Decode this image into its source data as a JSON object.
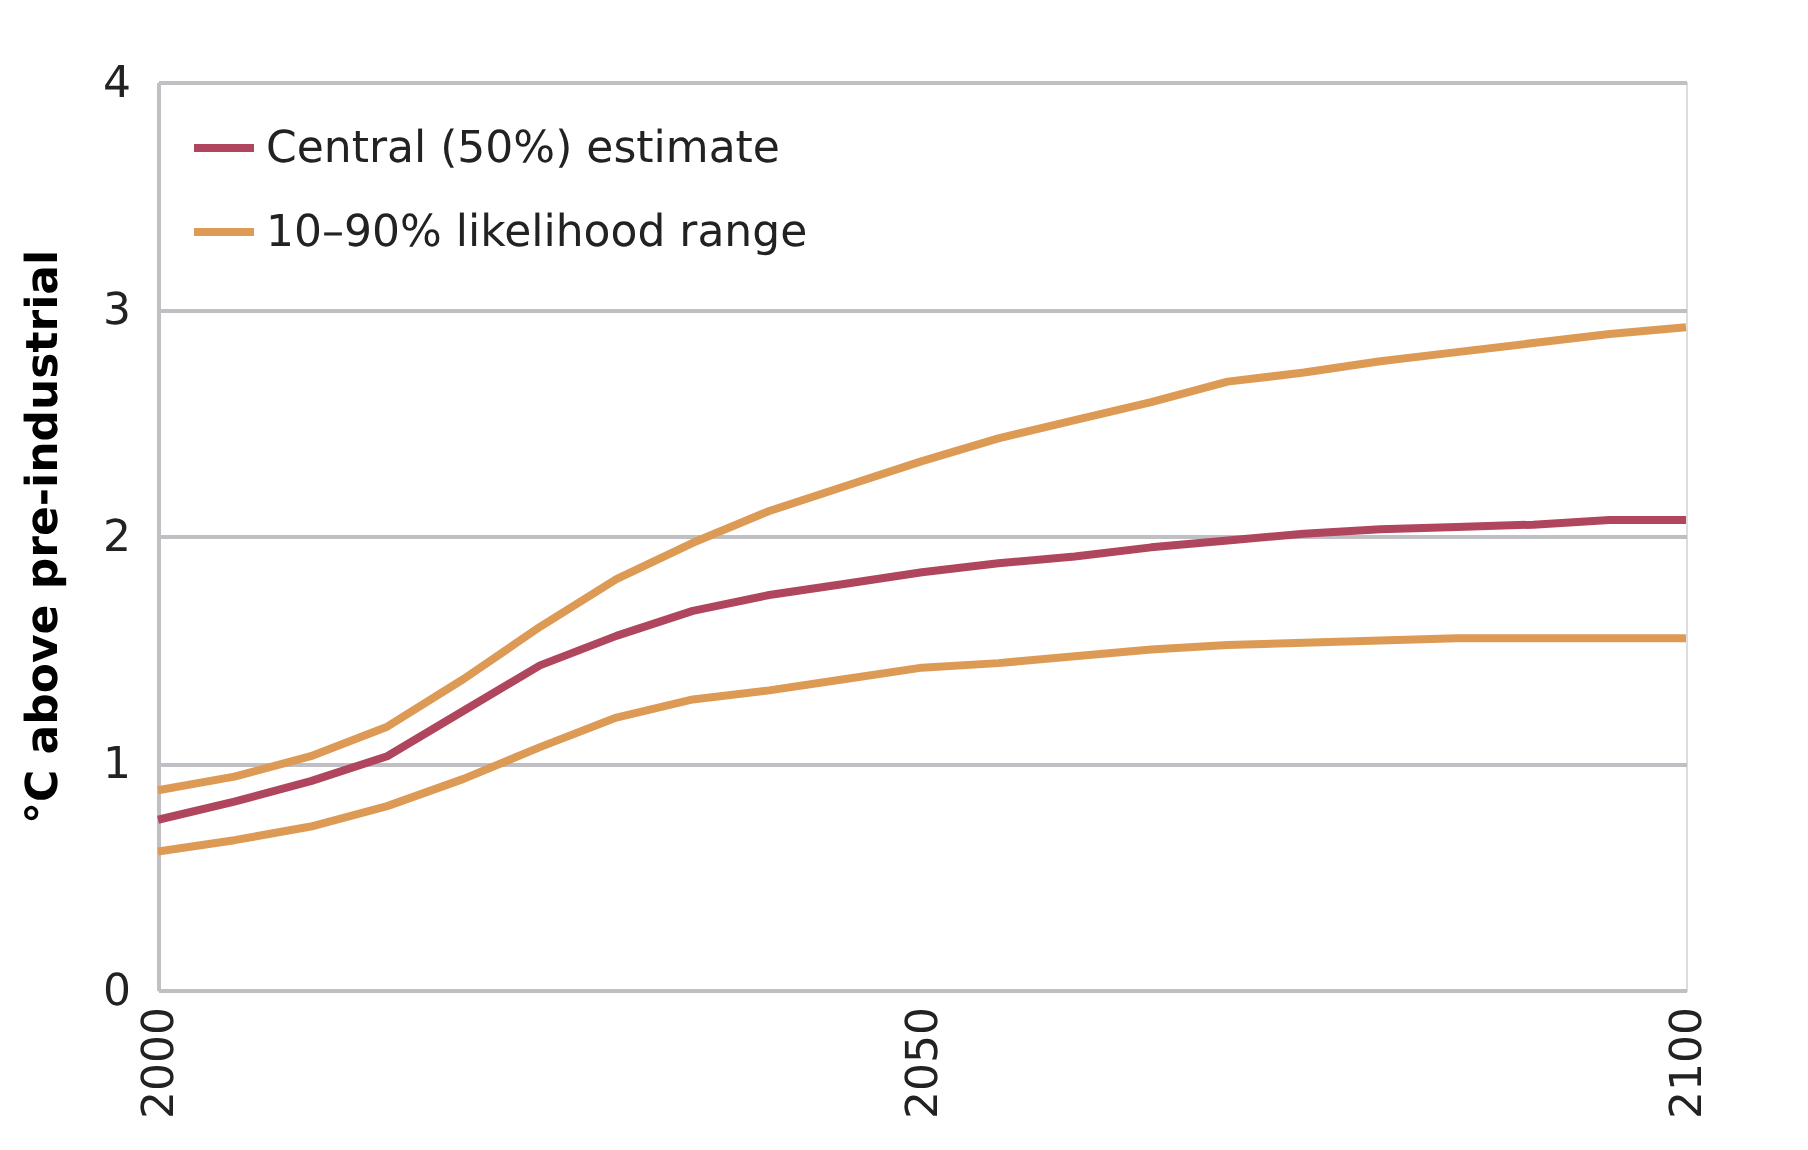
{
  "chart_data": {
    "type": "line",
    "ylabel": "°C above pre-industrial",
    "x": [
      2000,
      2005,
      2010,
      2015,
      2020,
      2025,
      2030,
      2035,
      2040,
      2045,
      2050,
      2055,
      2060,
      2065,
      2070,
      2075,
      2080,
      2085,
      2090,
      2095,
      2100
    ],
    "series": [
      {
        "name": "Central (50%) estimate",
        "color": "#b0455e",
        "values": [
          0.75,
          0.83,
          0.92,
          1.03,
          1.23,
          1.43,
          1.56,
          1.67,
          1.74,
          1.79,
          1.84,
          1.88,
          1.91,
          1.95,
          1.98,
          2.01,
          2.03,
          2.04,
          2.05,
          2.07,
          2.07
        ]
      },
      {
        "name": "10–90% likelihood range",
        "color": "#dc9a55",
        "values": [
          0.88,
          0.94,
          1.03,
          1.16,
          1.37,
          1.6,
          1.81,
          1.97,
          2.11,
          2.22,
          2.33,
          2.43,
          2.51,
          2.59,
          2.68,
          2.72,
          2.77,
          2.81,
          2.85,
          2.89,
          2.92
        ]
      },
      {
        "color": "#dc9a55",
        "values": [
          0.61,
          0.66,
          0.72,
          0.81,
          0.93,
          1.07,
          1.2,
          1.28,
          1.32,
          1.37,
          1.42,
          1.44,
          1.47,
          1.5,
          1.52,
          1.53,
          1.54,
          1.55,
          1.55,
          1.55,
          1.55
        ]
      }
    ],
    "xlim": [
      2000,
      2100
    ],
    "xticks": [
      2000,
      2050,
      2100
    ],
    "ylim": [
      0,
      4
    ],
    "yticks": [
      0,
      1,
      2,
      3,
      4
    ],
    "grid": "y",
    "legend": "top left",
    "line_style": "solid",
    "marker": "none"
  }
}
